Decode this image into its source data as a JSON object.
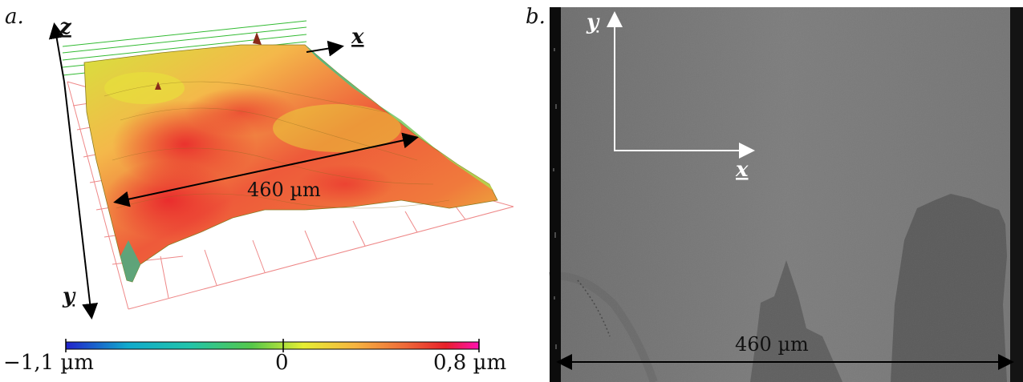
{
  "panel_a": {
    "letter": "a.",
    "axis_labels": {
      "x": "x",
      "y": "y",
      "z": "z"
    },
    "dimension_label": "460 µm",
    "colorbar": {
      "min_label": "−1,1 µm",
      "mid_label": "0",
      "max_label": "0,8 µm",
      "min_value": -1.1,
      "max_value": 0.8,
      "colors": [
        "#2222cc",
        "#11bbcc",
        "#33c46a",
        "#b5d93a",
        "#ffee33",
        "#f8b040",
        "#ef6a3a",
        "#e8202a",
        "#ff10b0"
      ]
    }
  },
  "panel_b": {
    "letter": "b.",
    "axis_labels": {
      "x": "x",
      "y": "y"
    },
    "dimension_label": "460 µm"
  }
}
